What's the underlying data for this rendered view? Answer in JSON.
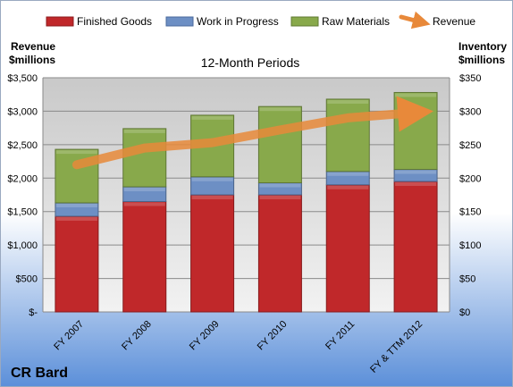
{
  "chart_data": {
    "type": "bar",
    "stacked": true,
    "title": "12-Month Periods",
    "company": "CR Bard",
    "categories": [
      "FY 2007",
      "FY 2008",
      "FY 2009",
      "FY 2010",
      "FY 2011",
      "FY & TTM 2012"
    ],
    "left_axis": {
      "label_line1": "Revenue",
      "label_line2": "$millions",
      "ticks": [
        "$-",
        "$500",
        "$1,000",
        "$1,500",
        "$2,000",
        "$2,500",
        "$3,000",
        "$3,500"
      ],
      "range": [
        0,
        3500
      ]
    },
    "right_axis": {
      "label_line1": "Inventory",
      "label_line2": "$millions",
      "ticks": [
        "$0",
        "$50",
        "$100",
        "$150",
        "$200",
        "$250",
        "$300",
        "$350"
      ],
      "range": [
        0,
        350
      ]
    },
    "series": [
      {
        "name": "Finished Goods",
        "axis": "right",
        "color": "#c0282a",
        "values": [
          143,
          165,
          175,
          175,
          190,
          195
        ]
      },
      {
        "name": "Work in Progress",
        "axis": "right",
        "color": "#6d8fc4",
        "values": [
          20,
          22,
          27,
          18,
          20,
          18
        ]
      },
      {
        "name": "Raw Materials",
        "axis": "right",
        "color": "#88a94b",
        "values": [
          80,
          87,
          92,
          114,
          108,
          115
        ]
      },
      {
        "name": "Revenue",
        "axis": "left",
        "type": "line",
        "color": "#e8893a",
        "values": [
          2200,
          2450,
          2530,
          2720,
          2900,
          2980
        ]
      }
    ],
    "legend_position": "top",
    "grid": true,
    "background": {
      "top": "#c8c8c8",
      "bottom": "#4f8ad8"
    }
  }
}
